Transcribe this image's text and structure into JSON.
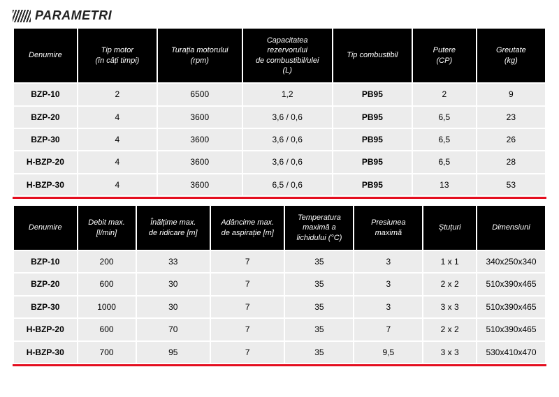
{
  "title": "PARAMETRI",
  "colors": {
    "header_bg": "#000000",
    "header_text": "#ffffff",
    "cell_bg": "#ececec",
    "cell_text": "#1a1a1a",
    "rule": "#e40e1f",
    "page_bg": "#ffffff",
    "hatch_dark": "#252525"
  },
  "typography": {
    "title_size_pt": 14,
    "header_size_pt": 8.5,
    "cell_size_pt": 9
  },
  "table1": {
    "columns": [
      "Denumire",
      "Tip motor\n(în câți timpi)",
      "Turația motorului\n(rpm)",
      "Capacitatea\nrezervorului\nde combustibil/ulei\n(L)",
      "Tip combustibil",
      "Putere\n(CP)",
      "Greutate\n(kg)"
    ],
    "col_widths_pct": [
      12,
      15,
      16,
      17,
      15,
      12,
      13
    ],
    "bold_cols": [
      0,
      4
    ],
    "rows": [
      [
        "BZP-10",
        "2",
        "6500",
        "1,2",
        "PB95",
        "2",
        "9"
      ],
      [
        "BZP-20",
        "4",
        "3600",
        "3,6 / 0,6",
        "PB95",
        "6,5",
        "23"
      ],
      [
        "BZP-30",
        "4",
        "3600",
        "3,6 / 0,6",
        "PB95",
        "6,5",
        "26"
      ],
      [
        "H-BZP-20",
        "4",
        "3600",
        "3,6 / 0,6",
        "PB95",
        "6,5",
        "28"
      ],
      [
        "H-BZP-30",
        "4",
        "3600",
        "6,5 / 0,6",
        "PB95",
        "13",
        "53"
      ]
    ]
  },
  "table2": {
    "columns": [
      "Denumire",
      "Debit max.\n[l/min]",
      "Înălțime max.\nde ridicare [m]",
      "Adâncime max.\nde aspirație [m]",
      "Temperatura\nmaximă a\nlichidului (°C)",
      "Presiunea maximă",
      "Ștuțuri",
      "Dimensiuni"
    ],
    "col_widths_pct": [
      12,
      11,
      14,
      14,
      13,
      13,
      10,
      13
    ],
    "bold_cols": [
      0
    ],
    "rows": [
      [
        "BZP-10",
        "200",
        "33",
        "7",
        "35",
        "3",
        "1 x 1",
        "340x250x340"
      ],
      [
        "BZP-20",
        "600",
        "30",
        "7",
        "35",
        "3",
        "2 x 2",
        "510x390x465"
      ],
      [
        "BZP-30",
        "1000",
        "30",
        "7",
        "35",
        "3",
        "3 x 3",
        "510x390x465"
      ],
      [
        "H-BZP-20",
        "600",
        "70",
        "7",
        "35",
        "7",
        "2 x 2",
        "510x390x465"
      ],
      [
        "H-BZP-30",
        "700",
        "95",
        "7",
        "35",
        "9,5",
        "3 x 3",
        "530x410x470"
      ]
    ]
  }
}
